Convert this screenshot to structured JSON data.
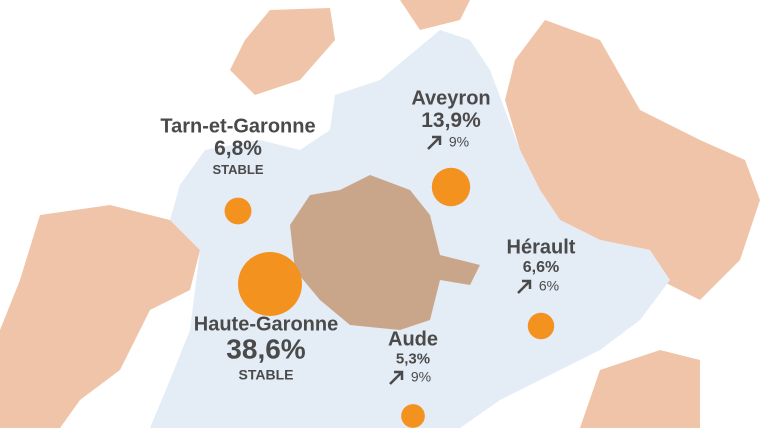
{
  "regions": [
    {
      "name": "Aveyron",
      "share": {
        "value": 13.9,
        "label": "13,9%"
      },
      "trend": "9%"
    },
    {
      "name": "Tarn-et-Garonne",
      "share": {
        "value": 6.8,
        "label": "6,8%"
      },
      "trend": "STABLE"
    },
    {
      "name": "Hérault",
      "share": {
        "value": 6.6,
        "label": "6,6%"
      },
      "trend": "6%"
    },
    {
      "name": "Haute-Garonne",
      "share": {
        "value": 38.6,
        "label": "38,6%"
      },
      "trend": "STABLE"
    },
    {
      "name": "Aude",
      "share": {
        "value": 5.3,
        "label": "5,3%"
      },
      "trend": "9%"
    }
  ]
}
